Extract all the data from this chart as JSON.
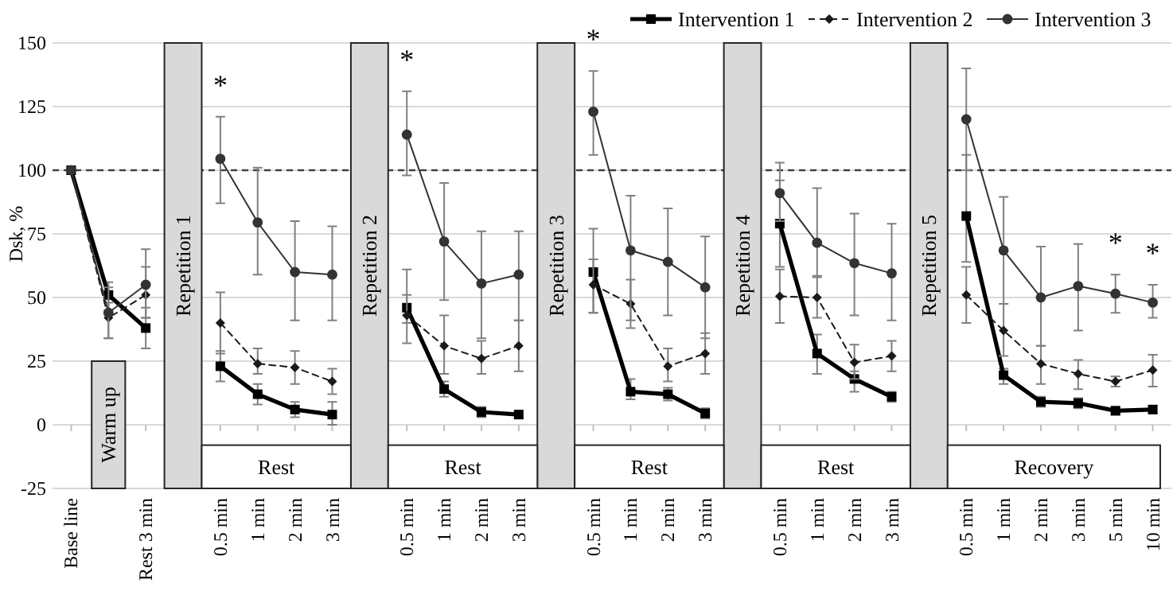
{
  "chart_data": {
    "type": "line",
    "ylabel": "Dsk, %",
    "categories": [
      "Base line",
      null,
      "Rest 3 min",
      null,
      "0.5 min",
      "1 min",
      "2 min",
      "3 min",
      null,
      "0.5 min",
      "1 min",
      "2 min",
      "3 min",
      null,
      "0.5 min",
      "1 min",
      "2 min",
      "3 min",
      null,
      "0.5 min",
      "1 min",
      "2 min",
      "3 min",
      null,
      "0.5 min",
      "1 min",
      "2 min",
      "3 min",
      "5 min",
      "10 min"
    ],
    "series": [
      {
        "name": "Intervention 1",
        "color": "#000000",
        "marker": "square",
        "line_style": "solid",
        "values": [
          100,
          51,
          38,
          null,
          23,
          12,
          6,
          4,
          null,
          46,
          14,
          5,
          4,
          null,
          60,
          13,
          12,
          4.5,
          null,
          79,
          28,
          18,
          11,
          null,
          82,
          19.5,
          9,
          8.5,
          5.5,
          6
        ],
        "errors": [
          null,
          [
            45,
            56
          ],
          [
            30,
            46
          ],
          null,
          [
            17,
            29
          ],
          [
            8,
            16
          ],
          [
            3,
            9
          ],
          [
            0,
            9
          ],
          null,
          [
            40,
            51
          ],
          [
            11,
            17
          ],
          [
            3,
            7
          ],
          [
            2.5,
            5.5
          ],
          null,
          [
            44,
            65
          ],
          [
            10,
            18
          ],
          [
            9.5,
            14.5
          ],
          [
            2.5,
            6.5
          ],
          null,
          [
            62,
            96
          ],
          [
            20,
            35.5
          ],
          [
            13,
            21
          ],
          [
            9,
            13
          ],
          null,
          [
            64,
            106
          ],
          [
            16,
            22
          ],
          [
            7,
            11
          ],
          [
            6.5,
            10.5
          ],
          [
            4,
            7
          ],
          [
            4.5,
            7.5
          ]
        ]
      },
      {
        "name": "Intervention 2",
        "color": "#1a1a1a",
        "marker": "diamond",
        "line_style": "dashed",
        "values": [
          100,
          42,
          51,
          null,
          40,
          24,
          22.5,
          17,
          null,
          43,
          31,
          26,
          31,
          null,
          55,
          47.5,
          23,
          28,
          null,
          50.5,
          50,
          24.5,
          27,
          null,
          51,
          37,
          24,
          20,
          17,
          21.5
        ],
        "errors": [
          null,
          [
            34,
            48
          ],
          [
            42,
            62
          ],
          null,
          [
            28,
            52
          ],
          [
            20,
            30
          ],
          [
            16,
            29
          ],
          [
            12,
            22
          ],
          null,
          [
            32,
            61
          ],
          [
            20,
            43
          ],
          [
            20,
            33
          ],
          [
            21,
            41
          ],
          null,
          [
            44,
            77
          ],
          [
            38,
            57
          ],
          [
            17,
            30
          ],
          [
            20,
            36
          ],
          null,
          [
            40,
            61
          ],
          [
            42,
            58.5
          ],
          [
            18,
            31.5
          ],
          [
            21,
            33
          ],
          null,
          [
            40,
            62
          ],
          [
            27,
            47.5
          ],
          [
            16,
            31
          ],
          [
            14,
            25.5
          ],
          [
            15,
            19
          ],
          [
            15,
            27.5
          ]
        ]
      },
      {
        "name": "Intervention 3",
        "color": "#333333",
        "marker": "circle",
        "line_style": "solid",
        "values": [
          100,
          44,
          55,
          null,
          104.5,
          79.5,
          60,
          59,
          null,
          114,
          72,
          55.5,
          59,
          null,
          123,
          68.5,
          64,
          54,
          null,
          91,
          71.5,
          63.5,
          59.5,
          null,
          120,
          68.5,
          50,
          54.5,
          51.5,
          48
        ],
        "errors": [
          null,
          [
            34,
            54
          ],
          [
            42,
            69
          ],
          null,
          [
            87,
            121
          ],
          [
            59,
            101
          ],
          [
            41,
            80
          ],
          [
            41,
            78
          ],
          null,
          [
            98,
            131
          ],
          [
            49,
            95
          ],
          [
            34,
            76
          ],
          [
            41,
            76
          ],
          null,
          [
            106,
            139
          ],
          [
            41,
            90
          ],
          [
            43,
            85
          ],
          [
            34,
            74
          ],
          null,
          [
            80,
            103
          ],
          [
            58,
            93
          ],
          [
            43,
            83
          ],
          [
            41,
            79
          ],
          null,
          [
            100,
            140
          ],
          [
            47.5,
            89.5
          ],
          [
            31,
            70
          ],
          [
            37,
            71
          ],
          [
            44,
            59
          ],
          [
            42,
            55
          ]
        ]
      }
    ],
    "ylim": [
      -25,
      150
    ],
    "yticks": [
      -25,
      0,
      25,
      50,
      75,
      100,
      125,
      150
    ],
    "grid": "y",
    "legend": "top right",
    "ref_lines": [
      {
        "axis": "y",
        "value": 100,
        "line_style": "dashed",
        "color": "#404040"
      }
    ],
    "annotations": [
      "Warm up",
      "Repetition 1",
      "Repetition 2",
      "Repetition 3",
      "Repetition 4",
      "Repetition 5",
      "Rest",
      "Rest",
      "Rest",
      "Rest",
      "Recovery",
      "*",
      "*",
      "*",
      "*",
      "*"
    ]
  }
}
